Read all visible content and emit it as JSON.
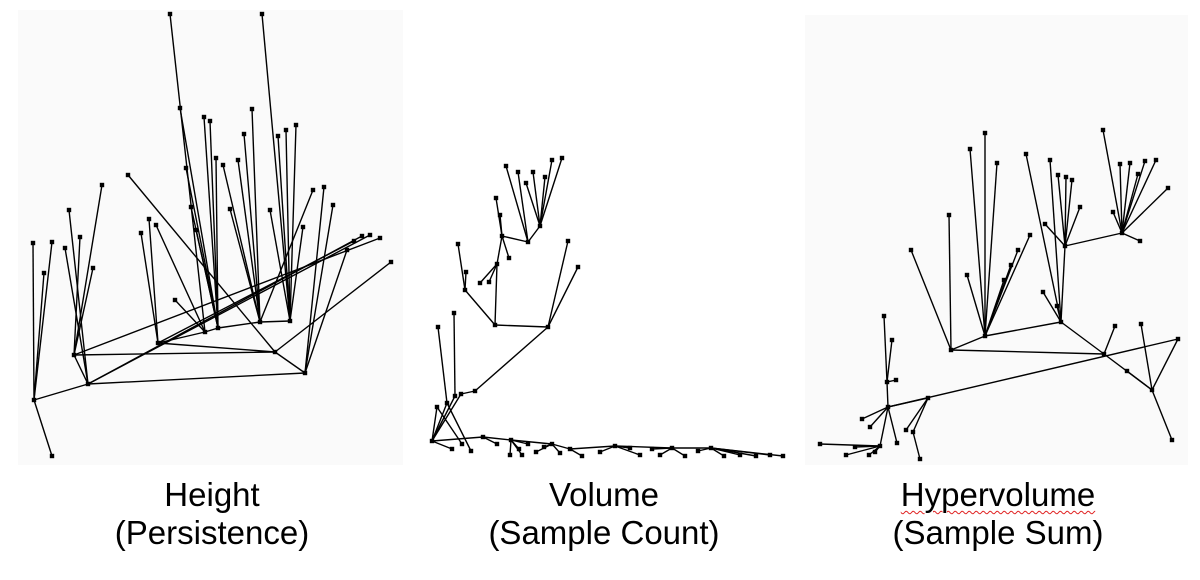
{
  "panels": [
    {
      "id": "height",
      "title": "Height",
      "subtitle": "(Persistence)"
    },
    {
      "id": "volume",
      "title": "Volume",
      "subtitle": "(Sample Count)"
    },
    {
      "id": "hypervolume",
      "title": "Hypervolume",
      "subtitle": "(Sample Sum)",
      "spellcheck_flag": true
    }
  ],
  "colors": {
    "background": "#ffffff",
    "edge": "#000000",
    "node": "#000000",
    "panel_background": "#fafafa",
    "spellcheck_underline": "#e02020"
  }
}
